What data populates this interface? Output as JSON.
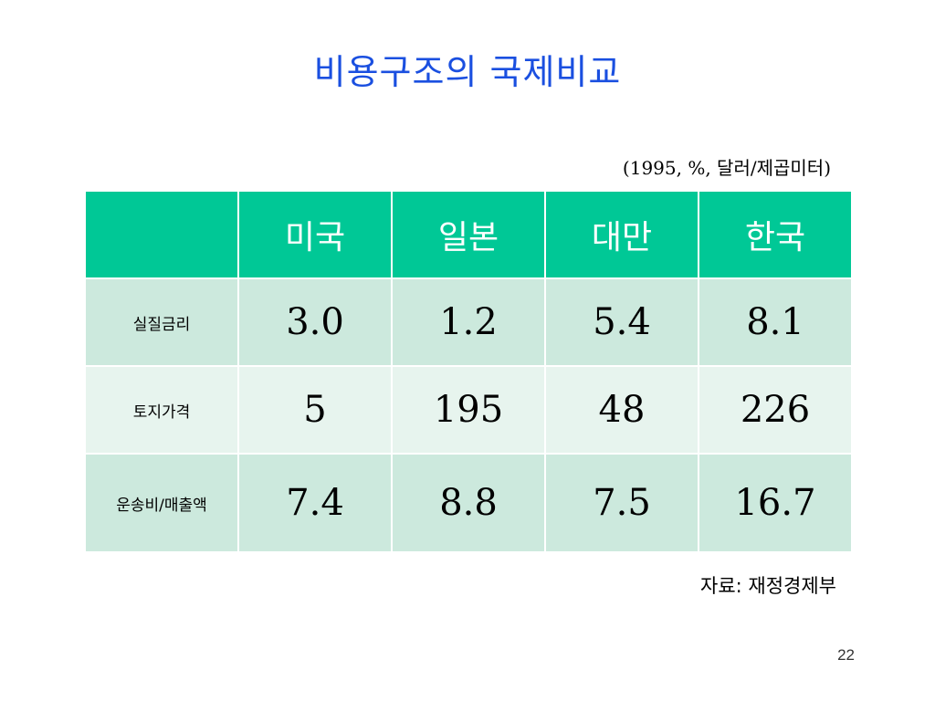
{
  "slide": {
    "title": "비용구조의 국제비교",
    "units": "(1995, %, 달러/제곱미터)",
    "source": "자료: 재정경제부",
    "page_number": "22"
  },
  "table": {
    "header_color": "#00c896",
    "row_colors": [
      "#cce9dd",
      "#e7f4ee"
    ],
    "corner": "",
    "columns": [
      "미국",
      "일본",
      "대만",
      "한국"
    ],
    "rows": [
      {
        "label": "실질금리",
        "values": [
          "3.0",
          "1.2",
          "5.4",
          "8.1"
        ]
      },
      {
        "label": "토지가격",
        "values": [
          "5",
          "195",
          "48",
          "226"
        ]
      },
      {
        "label": "운송비/매출액",
        "values": [
          "7.4",
          "8.8",
          "7.5",
          "16.7"
        ]
      }
    ]
  }
}
